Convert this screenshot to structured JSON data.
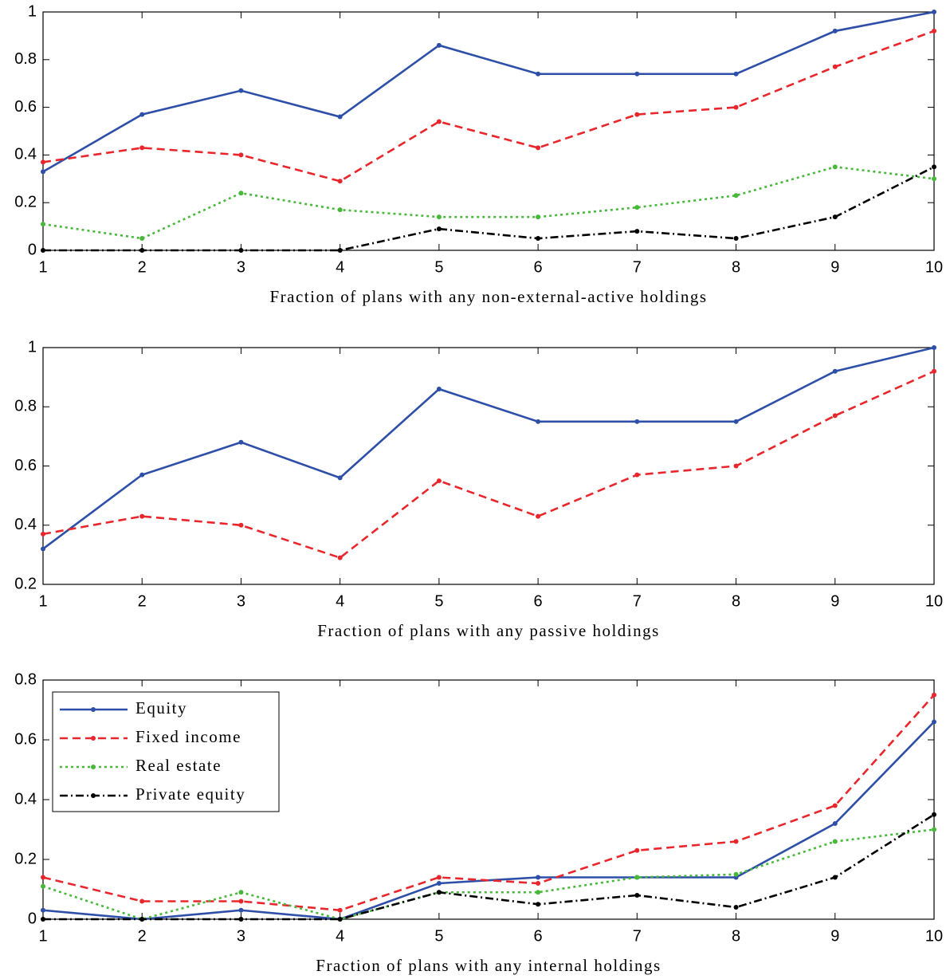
{
  "chart_data": [
    {
      "type": "line",
      "xlabel": "Fraction of plans with any non-external-active holdings",
      "x": [
        1,
        2,
        3,
        4,
        5,
        6,
        7,
        8,
        9,
        10
      ],
      "xlim": [
        1,
        10
      ],
      "xticks": [
        1,
        2,
        3,
        4,
        5,
        6,
        7,
        8,
        9,
        10
      ],
      "ylim": [
        0,
        1
      ],
      "yticks": [
        0,
        0.2,
        0.4,
        0.6,
        0.8,
        1
      ],
      "grid": false,
      "series": [
        {
          "color": "#2e4fa8",
          "dash": "solid",
          "values": [
            0.33,
            0.57,
            0.67,
            0.56,
            0.86,
            0.74,
            0.74,
            0.74,
            0.92,
            1.0
          ]
        },
        {
          "color": "#e8262b",
          "dash": "dashed",
          "values": [
            0.37,
            0.43,
            0.4,
            0.29,
            0.54,
            0.43,
            0.57,
            0.6,
            0.77,
            0.92
          ]
        },
        {
          "color": "#47b83a",
          "dash": "dotted",
          "values": [
            0.11,
            0.05,
            0.24,
            0.17,
            0.14,
            0.14,
            0.18,
            0.23,
            0.35,
            0.3
          ]
        },
        {
          "color": "#000000",
          "dash": "dashdot",
          "values": [
            0,
            0,
            0,
            0,
            0.09,
            0.05,
            0.08,
            0.05,
            0.14,
            0.35
          ]
        }
      ]
    },
    {
      "type": "line",
      "xlabel": "Fraction of plans with any passive holdings",
      "x": [
        1,
        2,
        3,
        4,
        5,
        6,
        7,
        8,
        9,
        10
      ],
      "xlim": [
        1,
        10
      ],
      "xticks": [
        1,
        2,
        3,
        4,
        5,
        6,
        7,
        8,
        9,
        10
      ],
      "ylim": [
        0.2,
        1
      ],
      "yticks": [
        0.2,
        0.4,
        0.6,
        0.8,
        1
      ],
      "grid": false,
      "series": [
        {
          "color": "#2e4fa8",
          "dash": "solid",
          "values": [
            0.32,
            0.57,
            0.68,
            0.56,
            0.86,
            0.75,
            0.75,
            0.75,
            0.92,
            1.0
          ]
        },
        {
          "color": "#e8262b",
          "dash": "dashed",
          "values": [
            0.37,
            0.43,
            0.4,
            0.29,
            0.55,
            0.43,
            0.57,
            0.6,
            0.77,
            0.92
          ]
        }
      ]
    },
    {
      "type": "line",
      "xlabel": "Fraction of plans with any internal holdings",
      "x": [
        1,
        2,
        3,
        4,
        5,
        6,
        7,
        8,
        9,
        10
      ],
      "xlim": [
        1,
        10
      ],
      "xticks": [
        1,
        2,
        3,
        4,
        5,
        6,
        7,
        8,
        9,
        10
      ],
      "ylim": [
        0,
        0.8
      ],
      "yticks": [
        0,
        0.2,
        0.4,
        0.6,
        0.8
      ],
      "grid": false,
      "legend": "upper-left",
      "series": [
        {
          "name": "Equity",
          "color": "#2e4fa8",
          "dash": "solid",
          "values": [
            0.03,
            0,
            0.03,
            0,
            0.12,
            0.14,
            0.14,
            0.14,
            0.32,
            0.66
          ]
        },
        {
          "name": "Fixed income",
          "color": "#e8262b",
          "dash": "dashed",
          "values": [
            0.14,
            0.06,
            0.06,
            0.03,
            0.14,
            0.12,
            0.23,
            0.26,
            0.38,
            0.75
          ]
        },
        {
          "name": "Real estate",
          "color": "#47b83a",
          "dash": "dotted",
          "values": [
            0.11,
            0,
            0.09,
            0,
            0.09,
            0.09,
            0.14,
            0.15,
            0.26,
            0.3
          ]
        },
        {
          "name": "Private equity",
          "color": "#000000",
          "dash": "dashdot",
          "values": [
            0,
            0,
            0,
            0,
            0.09,
            0.05,
            0.08,
            0.04,
            0.14,
            0.35
          ]
        }
      ]
    }
  ]
}
